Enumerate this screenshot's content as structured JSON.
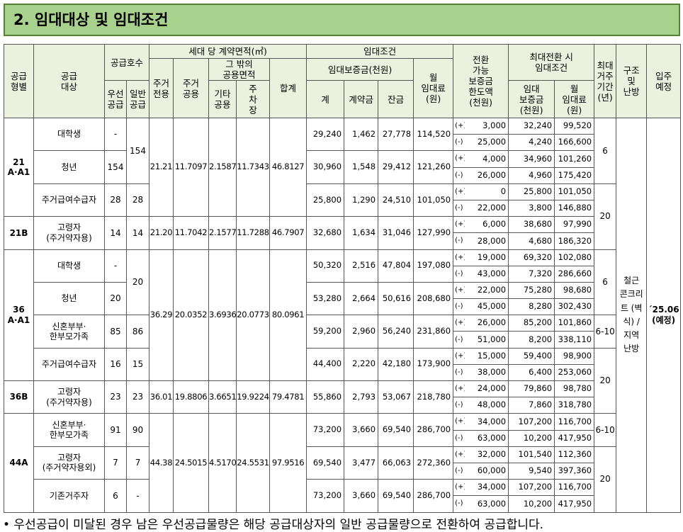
{
  "title": "2. 임대대상 및 임대조건",
  "header": {
    "type": "공급\n형별",
    "target": "공급\n대상",
    "supply": "공급호수",
    "priority": "우선\n공급",
    "general": "일반\n공급",
    "area": "세대 당 계약면적(㎡)",
    "exclusive": "주거\n전용",
    "common": "주거\n공용",
    "other_common": "그 밖의\n공용면적",
    "etc": "기타\n공용",
    "parking": "주\n차\n장",
    "total": "합계",
    "lease": "임대조건",
    "deposit": "임대보증금(천원)",
    "dep_total": "계",
    "down": "계약금",
    "balance": "잔금",
    "rent": "월\n임대료\n(원)",
    "conv": "전환\n가능\n보증금\n한도액\n(천원)",
    "max": "최대전환 시\n임대조건",
    "max_dep": "임대\n보증금\n(천원)",
    "max_rent": "월\n임대료\n(원)",
    "period": "최대\n거주\n기간\n(년)",
    "structure": "구조\n및\n난방",
    "movein": "입주\n예정"
  },
  "structure": "철근 콘크리트 (벽식) / 지역 난방",
  "movein": "´25.06 (예정)",
  "groups": [
    {
      "type": "21 A·A1",
      "area": [
        "21.21",
        "11.7097",
        "2.1587",
        "11.7343",
        "46.8127"
      ],
      "targets": [
        {
          "name": "대학생",
          "priority": "-",
          "general": "154",
          "lease": [
            "29,240",
            "1,462",
            "27,778",
            "114,520"
          ],
          "conv": [
            {
              "sign": "(+)",
              "amount": "3,000",
              "deposit": "32,240",
              "rent": "99,520"
            },
            {
              "sign": "(-)",
              "amount": "25,000",
              "deposit": "4,240",
              "rent": "166,600"
            }
          ],
          "period": "6"
        },
        {
          "name": "청년",
          "priority": "154",
          "lease": [
            "30,960",
            "1,548",
            "29,412",
            "121,260"
          ],
          "conv": [
            {
              "sign": "(+)",
              "amount": "4,000",
              "deposit": "34,960",
              "rent": "101,260"
            },
            {
              "sign": "(-)",
              "amount": "26,000",
              "deposit": "4,960",
              "rent": "175,420"
            }
          ]
        },
        {
          "name": "주거급여수급자",
          "priority": "28",
          "general": "28",
          "lease": [
            "25,800",
            "1,290",
            "24,510",
            "101,050"
          ],
          "conv": [
            {
              "sign": "(+)",
              "amount": "0",
              "deposit": "25,800",
              "rent": "101,050"
            },
            {
              "sign": "(-)",
              "amount": "22,000",
              "deposit": "3,800",
              "rent": "146,880"
            }
          ],
          "period": "20"
        }
      ]
    },
    {
      "type": "21B",
      "area": [
        "21.20",
        "11.7042",
        "2.1577",
        "11.7288",
        "46.7907"
      ],
      "targets": [
        {
          "name": "고령자\n(주거약자용)",
          "priority": "14",
          "general": "14",
          "lease": [
            "32,680",
            "1,634",
            "31,046",
            "127,990"
          ],
          "conv": [
            {
              "sign": "(+)",
              "amount": "6,000",
              "deposit": "38,680",
              "rent": "97,990"
            },
            {
              "sign": "(-)",
              "amount": "28,000",
              "deposit": "4,680",
              "rent": "186,320"
            }
          ]
        }
      ]
    },
    {
      "type": "36 A·A1",
      "area": [
        "36.29",
        "20.0352",
        "3.6936",
        "20.0773",
        "80.0961"
      ],
      "targets": [
        {
          "name": "대학생",
          "priority": "-",
          "general": "20",
          "lease": [
            "50,320",
            "2,516",
            "47,804",
            "197,080"
          ],
          "conv": [
            {
              "sign": "(+)",
              "amount": "19,000",
              "deposit": "69,320",
              "rent": "102,080"
            },
            {
              "sign": "(-)",
              "amount": "43,000",
              "deposit": "7,320",
              "rent": "286,660"
            }
          ],
          "period": "6"
        },
        {
          "name": "청년",
          "priority": "20",
          "lease": [
            "53,280",
            "2,664",
            "50,616",
            "208,680"
          ],
          "conv": [
            {
              "sign": "(+)",
              "amount": "22,000",
              "deposit": "75,280",
              "rent": "98,680"
            },
            {
              "sign": "(-)",
              "amount": "45,000",
              "deposit": "8,280",
              "rent": "302,430"
            }
          ]
        },
        {
          "name": "신혼부부·\n한부모가족",
          "priority": "85",
          "general": "86",
          "lease": [
            "59,200",
            "2,960",
            "56,240",
            "231,860"
          ],
          "conv": [
            {
              "sign": "(+)",
              "amount": "26,000",
              "deposit": "85,200",
              "rent": "101,860"
            },
            {
              "sign": "(-)",
              "amount": "51,000",
              "deposit": "8,200",
              "rent": "338,110"
            }
          ],
          "period": "6-10"
        },
        {
          "name": "주거급여수급자",
          "priority": "16",
          "general": "15",
          "lease": [
            "44,400",
            "2,220",
            "42,180",
            "173,900"
          ],
          "conv": [
            {
              "sign": "(+)",
              "amount": "15,000",
              "deposit": "59,400",
              "rent": "98,900"
            },
            {
              "sign": "(-)",
              "amount": "38,000",
              "deposit": "6,400",
              "rent": "253,060"
            }
          ],
          "period": "20"
        }
      ]
    },
    {
      "type": "36B",
      "area": [
        "36.01",
        "19.8806",
        "3.6651",
        "19.9224",
        "79.4781"
      ],
      "targets": [
        {
          "name": "고령자\n(주거약자용)",
          "priority": "23",
          "general": "23",
          "lease": [
            "55,860",
            "2,793",
            "53,067",
            "218,780"
          ],
          "conv": [
            {
              "sign": "(+)",
              "amount": "24,000",
              "deposit": "79,860",
              "rent": "98,780"
            },
            {
              "sign": "(-)",
              "amount": "48,000",
              "deposit": "7,860",
              "rent": "318,780"
            }
          ]
        }
      ]
    },
    {
      "type": "44A",
      "area": [
        "44.38",
        "24.5015",
        "4.5170",
        "24.5531",
        "97.9516"
      ],
      "targets": [
        {
          "name": "신혼부부·\n한부모가족",
          "priority": "91",
          "general": "90",
          "lease": [
            "73,200",
            "3,660",
            "69,540",
            "286,700"
          ],
          "conv": [
            {
              "sign": "(+)",
              "amount": "34,000",
              "deposit": "107,200",
              "rent": "116,700"
            },
            {
              "sign": "(-)",
              "amount": "63,000",
              "deposit": "10,200",
              "rent": "417,950"
            }
          ],
          "period": "6-10"
        },
        {
          "name": "고령자\n(주거약자용외)",
          "priority": "7",
          "general": "7",
          "lease": [
            "69,540",
            "3,477",
            "66,063",
            "272,360"
          ],
          "conv": [
            {
              "sign": "(+)",
              "amount": "32,000",
              "deposit": "101,540",
              "rent": "112,360"
            },
            {
              "sign": "(-)",
              "amount": "60,000",
              "deposit": "9,540",
              "rent": "397,360"
            }
          ],
          "period": "20"
        },
        {
          "name": "기존거주자",
          "priority": "6",
          "general": "-",
          "lease": [
            "73,200",
            "3,660",
            "69,540",
            "286,700"
          ],
          "conv": [
            {
              "sign": "(+)",
              "amount": "34,000",
              "deposit": "107,200",
              "rent": "116,700"
            },
            {
              "sign": "(-)",
              "amount": "63,000",
              "deposit": "10,200",
              "rent": "417,950"
            }
          ]
        }
      ]
    }
  ],
  "footnote": "• 우선공급이 미달된 경우 남은 우선공급물량은 해당 공급대상자의 일반 공급물량으로 전환하여 공급합니다."
}
